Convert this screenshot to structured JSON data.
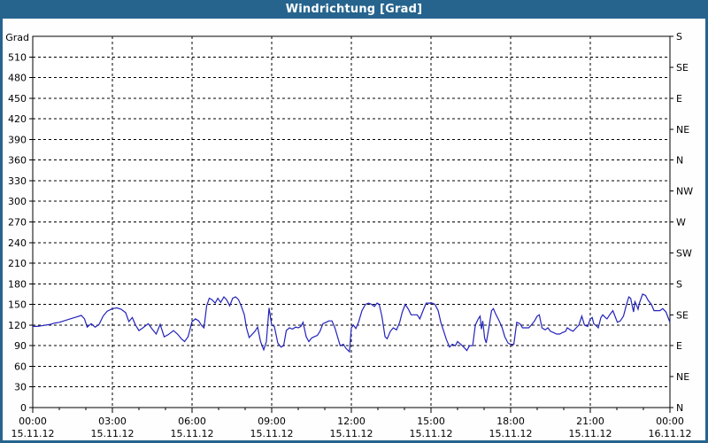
{
  "window": {
    "title": "Windrichtung [Grad]",
    "titlebar_color": "#26648E",
    "frame_color": "#26648E",
    "background_color": "#FDFEFD"
  },
  "chart_data": {
    "type": "line",
    "title": "Windrichtung [Grad]",
    "grid": {
      "on": true,
      "dashed": true,
      "color": "#000000"
    },
    "plot_background": "#FFFFFF",
    "y_axis": {
      "unit_label": "Grad",
      "min": 0,
      "max": 540,
      "tick_step": 30,
      "labels_top_to_bottom": [
        "510",
        "480",
        "450",
        "420",
        "390",
        "360",
        "330",
        "300",
        "270",
        "240",
        "210",
        "180",
        "150",
        "120",
        "90",
        "60",
        "30",
        "0"
      ]
    },
    "y_axis_right": {
      "tick_step": 45,
      "labels_top_to_bottom": [
        "S",
        "SE",
        "E",
        "NE",
        "N",
        "NW",
        "W",
        "SW",
        "S",
        "SE",
        "E",
        "NE",
        "N"
      ]
    },
    "x_axis": {
      "start_hour": 0,
      "end_hour": 24,
      "major_tick_hours": 3,
      "minor_tick_hours": 1,
      "major_labels": [
        {
          "time": "00:00",
          "date": "15.11.12"
        },
        {
          "time": "03:00",
          "date": "15.11.12"
        },
        {
          "time": "06:00",
          "date": "15.11.12"
        },
        {
          "time": "09:00",
          "date": "15.11.12"
        },
        {
          "time": "12:00",
          "date": "15.11.12"
        },
        {
          "time": "15:00",
          "date": "15.11.12"
        },
        {
          "time": "18:00",
          "date": "15.11.12"
        },
        {
          "time": "21:00",
          "date": "15.11.12"
        },
        {
          "time": "00:00",
          "date": "16.11.12"
        }
      ]
    },
    "series": [
      {
        "name": "Windrichtung",
        "color": "#2222BB",
        "points": [
          [
            0.0,
            118
          ],
          [
            0.17,
            118
          ],
          [
            0.33,
            119
          ],
          [
            0.5,
            120
          ],
          [
            0.67,
            121
          ],
          [
            0.83,
            123
          ],
          [
            1.0,
            124
          ],
          [
            1.17,
            126
          ],
          [
            1.33,
            128
          ],
          [
            1.5,
            130
          ],
          [
            1.67,
            132
          ],
          [
            1.83,
            134
          ],
          [
            1.95,
            129
          ],
          [
            2.05,
            117
          ],
          [
            2.2,
            122
          ],
          [
            2.35,
            117
          ],
          [
            2.5,
            121
          ],
          [
            2.65,
            133
          ],
          [
            2.8,
            140
          ],
          [
            3.0,
            144
          ],
          [
            3.17,
            145
          ],
          [
            3.33,
            143
          ],
          [
            3.5,
            138
          ],
          [
            3.62,
            125
          ],
          [
            3.75,
            131
          ],
          [
            3.87,
            120
          ],
          [
            4.0,
            112
          ],
          [
            4.15,
            116
          ],
          [
            4.35,
            122
          ],
          [
            4.5,
            114
          ],
          [
            4.65,
            107
          ],
          [
            4.8,
            121
          ],
          [
            4.95,
            103
          ],
          [
            5.1,
            106
          ],
          [
            5.3,
            112
          ],
          [
            5.45,
            107
          ],
          [
            5.6,
            100
          ],
          [
            5.72,
            96
          ],
          [
            5.85,
            103
          ],
          [
            6.0,
            125
          ],
          [
            6.13,
            129
          ],
          [
            6.25,
            126
          ],
          [
            6.35,
            120
          ],
          [
            6.45,
            116
          ],
          [
            6.55,
            148
          ],
          [
            6.65,
            159
          ],
          [
            6.75,
            157
          ],
          [
            6.87,
            152
          ],
          [
            6.97,
            159
          ],
          [
            7.08,
            153
          ],
          [
            7.2,
            161
          ],
          [
            7.3,
            157
          ],
          [
            7.42,
            148
          ],
          [
            7.53,
            159
          ],
          [
            7.64,
            161
          ],
          [
            7.75,
            157
          ],
          [
            7.87,
            146
          ],
          [
            7.97,
            135
          ],
          [
            8.05,
            116
          ],
          [
            8.15,
            102
          ],
          [
            8.25,
            106
          ],
          [
            8.37,
            111
          ],
          [
            8.47,
            117
          ],
          [
            8.58,
            96
          ],
          [
            8.7,
            84
          ],
          [
            8.8,
            96
          ],
          [
            8.9,
            145
          ],
          [
            9.0,
            120
          ],
          [
            9.1,
            118
          ],
          [
            9.23,
            94
          ],
          [
            9.35,
            88
          ],
          [
            9.45,
            90
          ],
          [
            9.55,
            112
          ],
          [
            9.67,
            116
          ],
          [
            9.78,
            114
          ],
          [
            9.9,
            117
          ],
          [
            10.0,
            116
          ],
          [
            10.1,
            118
          ],
          [
            10.18,
            124
          ],
          [
            10.3,
            103
          ],
          [
            10.4,
            96
          ],
          [
            10.5,
            101
          ],
          [
            10.6,
            103
          ],
          [
            10.72,
            105
          ],
          [
            10.82,
            111
          ],
          [
            10.93,
            122
          ],
          [
            11.05,
            124
          ],
          [
            11.15,
            126
          ],
          [
            11.27,
            126
          ],
          [
            11.38,
            116
          ],
          [
            11.48,
            103
          ],
          [
            11.58,
            90
          ],
          [
            11.7,
            92
          ],
          [
            11.8,
            86
          ],
          [
            11.93,
            81
          ],
          [
            12.0,
            116
          ],
          [
            12.08,
            120
          ],
          [
            12.17,
            115
          ],
          [
            12.27,
            124
          ],
          [
            12.4,
            141
          ],
          [
            12.53,
            150
          ],
          [
            12.65,
            152
          ],
          [
            12.77,
            150
          ],
          [
            12.87,
            147
          ],
          [
            12.97,
            152
          ],
          [
            13.05,
            150
          ],
          [
            13.15,
            133
          ],
          [
            13.27,
            103
          ],
          [
            13.35,
            100
          ],
          [
            13.47,
            111
          ],
          [
            13.58,
            116
          ],
          [
            13.7,
            113
          ],
          [
            13.82,
            124
          ],
          [
            13.92,
            139
          ],
          [
            14.03,
            150
          ],
          [
            14.15,
            143
          ],
          [
            14.25,
            135
          ],
          [
            14.37,
            135
          ],
          [
            14.48,
            135
          ],
          [
            14.58,
            129
          ],
          [
            14.7,
            141
          ],
          [
            14.82,
            152
          ],
          [
            14.93,
            152
          ],
          [
            15.05,
            152
          ],
          [
            15.15,
            150
          ],
          [
            15.27,
            141
          ],
          [
            15.37,
            124
          ],
          [
            15.48,
            111
          ],
          [
            15.58,
            99
          ],
          [
            15.7,
            88
          ],
          [
            15.8,
            92
          ],
          [
            15.92,
            90
          ],
          [
            16.0,
            96
          ],
          [
            16.12,
            92
          ],
          [
            16.23,
            88
          ],
          [
            16.35,
            83
          ],
          [
            16.45,
            90
          ],
          [
            16.57,
            90
          ],
          [
            16.67,
            120
          ],
          [
            16.78,
            129
          ],
          [
            16.85,
            133
          ],
          [
            16.9,
            114
          ],
          [
            16.95,
            126
          ],
          [
            17.02,
            101
          ],
          [
            17.08,
            94
          ],
          [
            17.18,
            116
          ],
          [
            17.28,
            141
          ],
          [
            17.35,
            144
          ],
          [
            17.45,
            135
          ],
          [
            17.57,
            126
          ],
          [
            17.68,
            116
          ],
          [
            17.78,
            103
          ],
          [
            17.9,
            94
          ],
          [
            18.0,
            92
          ],
          [
            18.12,
            92
          ],
          [
            18.23,
            124
          ],
          [
            18.35,
            122
          ],
          [
            18.45,
            116
          ],
          [
            18.57,
            116
          ],
          [
            18.68,
            116
          ],
          [
            18.78,
            120
          ],
          [
            18.9,
            126
          ],
          [
            19.0,
            133
          ],
          [
            19.08,
            135
          ],
          [
            19.18,
            116
          ],
          [
            19.3,
            113
          ],
          [
            19.4,
            116
          ],
          [
            19.5,
            111
          ],
          [
            19.62,
            109
          ],
          [
            19.73,
            107
          ],
          [
            19.85,
            107
          ],
          [
            19.95,
            109
          ],
          [
            20.07,
            111
          ],
          [
            20.13,
            116
          ],
          [
            20.25,
            113
          ],
          [
            20.35,
            111
          ],
          [
            20.47,
            116
          ],
          [
            20.57,
            120
          ],
          [
            20.68,
            133
          ],
          [
            20.78,
            120
          ],
          [
            20.9,
            118
          ],
          [
            21.0,
            129
          ],
          [
            21.07,
            131
          ],
          [
            21.13,
            122
          ],
          [
            21.25,
            118
          ],
          [
            21.3,
            116
          ],
          [
            21.4,
            131
          ],
          [
            21.47,
            135
          ],
          [
            21.57,
            131
          ],
          [
            21.63,
            129
          ],
          [
            21.73,
            135
          ],
          [
            21.85,
            141
          ],
          [
            21.95,
            131
          ],
          [
            22.02,
            124
          ],
          [
            22.13,
            126
          ],
          [
            22.25,
            133
          ],
          [
            22.35,
            148
          ],
          [
            22.45,
            161
          ],
          [
            22.52,
            159
          ],
          [
            22.58,
            148
          ],
          [
            22.63,
            139
          ],
          [
            22.68,
            154
          ],
          [
            22.73,
            150
          ],
          [
            22.8,
            143
          ],
          [
            22.85,
            152
          ],
          [
            22.97,
            165
          ],
          [
            23.08,
            163
          ],
          [
            23.18,
            156
          ],
          [
            23.3,
            150
          ],
          [
            23.4,
            141
          ],
          [
            23.52,
            141
          ],
          [
            23.62,
            141
          ],
          [
            23.73,
            144
          ],
          [
            23.85,
            139
          ],
          [
            23.95,
            129
          ],
          [
            24.0,
            124
          ]
        ]
      }
    ]
  }
}
